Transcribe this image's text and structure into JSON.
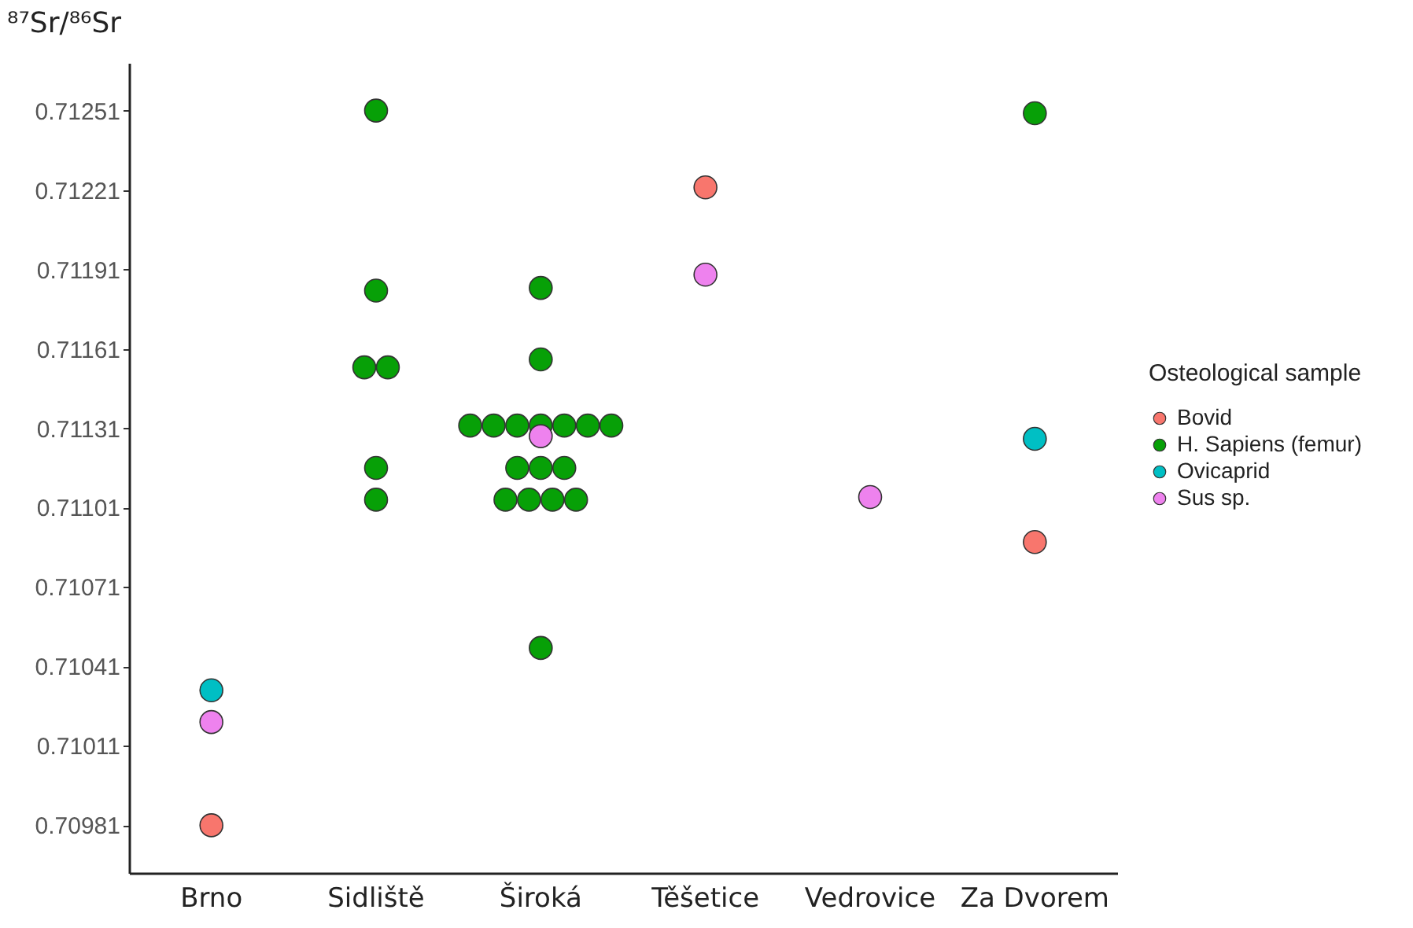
{
  "chart_data": {
    "type": "scatter",
    "ylabel": "⁸⁷Sr/⁸⁶Sr",
    "legend_title": "Osteological sample",
    "legend": "right",
    "marker": "circle",
    "grid": false,
    "categories": [
      "Brno",
      "Sidliště",
      "Široká",
      "Těšetice",
      "Vedrovice",
      "Za Dvorem"
    ],
    "ylim": [
      0.70963,
      0.71269
    ],
    "yticks": [
      0.70981,
      0.71011,
      0.71041,
      0.71071,
      0.71101,
      0.71131,
      0.71161,
      0.71191,
      0.71221,
      0.71251
    ],
    "series": [
      {
        "name": "Bovid",
        "color": "#f8766d",
        "x": [
          "Brno",
          "Těšetice",
          "Za Dvorem"
        ],
        "values": [
          0.70981,
          0.71222,
          0.71088
        ]
      },
      {
        "name": "H. Sapiens (femur)",
        "color": "#07a007",
        "x": [
          "Sidliště",
          "Sidliště",
          "Sidliště",
          "Sidliště",
          "Sidliště",
          "Sidliště",
          "Široká",
          "Široká",
          "Široká",
          "Široká",
          "Široká",
          "Široká",
          "Široká",
          "Široká",
          "Široká",
          "Široká",
          "Široká",
          "Široká",
          "Široká",
          "Široká",
          "Široká",
          "Široká",
          "Široká",
          "Za Dvorem"
        ],
        "values": [
          0.71251,
          0.71183,
          0.71154,
          0.71154,
          0.71116,
          0.71104,
          0.71184,
          0.71157,
          0.71132,
          0.71132,
          0.71132,
          0.71132,
          0.71132,
          0.71132,
          0.71132,
          0.71116,
          0.71116,
          0.71116,
          0.71104,
          0.71104,
          0.71104,
          0.71104,
          0.71048,
          0.7125
        ]
      },
      {
        "name": "Ovicaprid",
        "color": "#00bfc4",
        "x": [
          "Brno",
          "Za Dvorem"
        ],
        "values": [
          0.71032,
          0.71127
        ]
      },
      {
        "name": "Sus sp.",
        "color": "#ee82ee",
        "x": [
          "Brno",
          "Široká",
          "Těšetice",
          "Vedrovice"
        ],
        "values": [
          0.7102,
          0.71128,
          0.71189,
          0.71105
        ]
      }
    ]
  }
}
